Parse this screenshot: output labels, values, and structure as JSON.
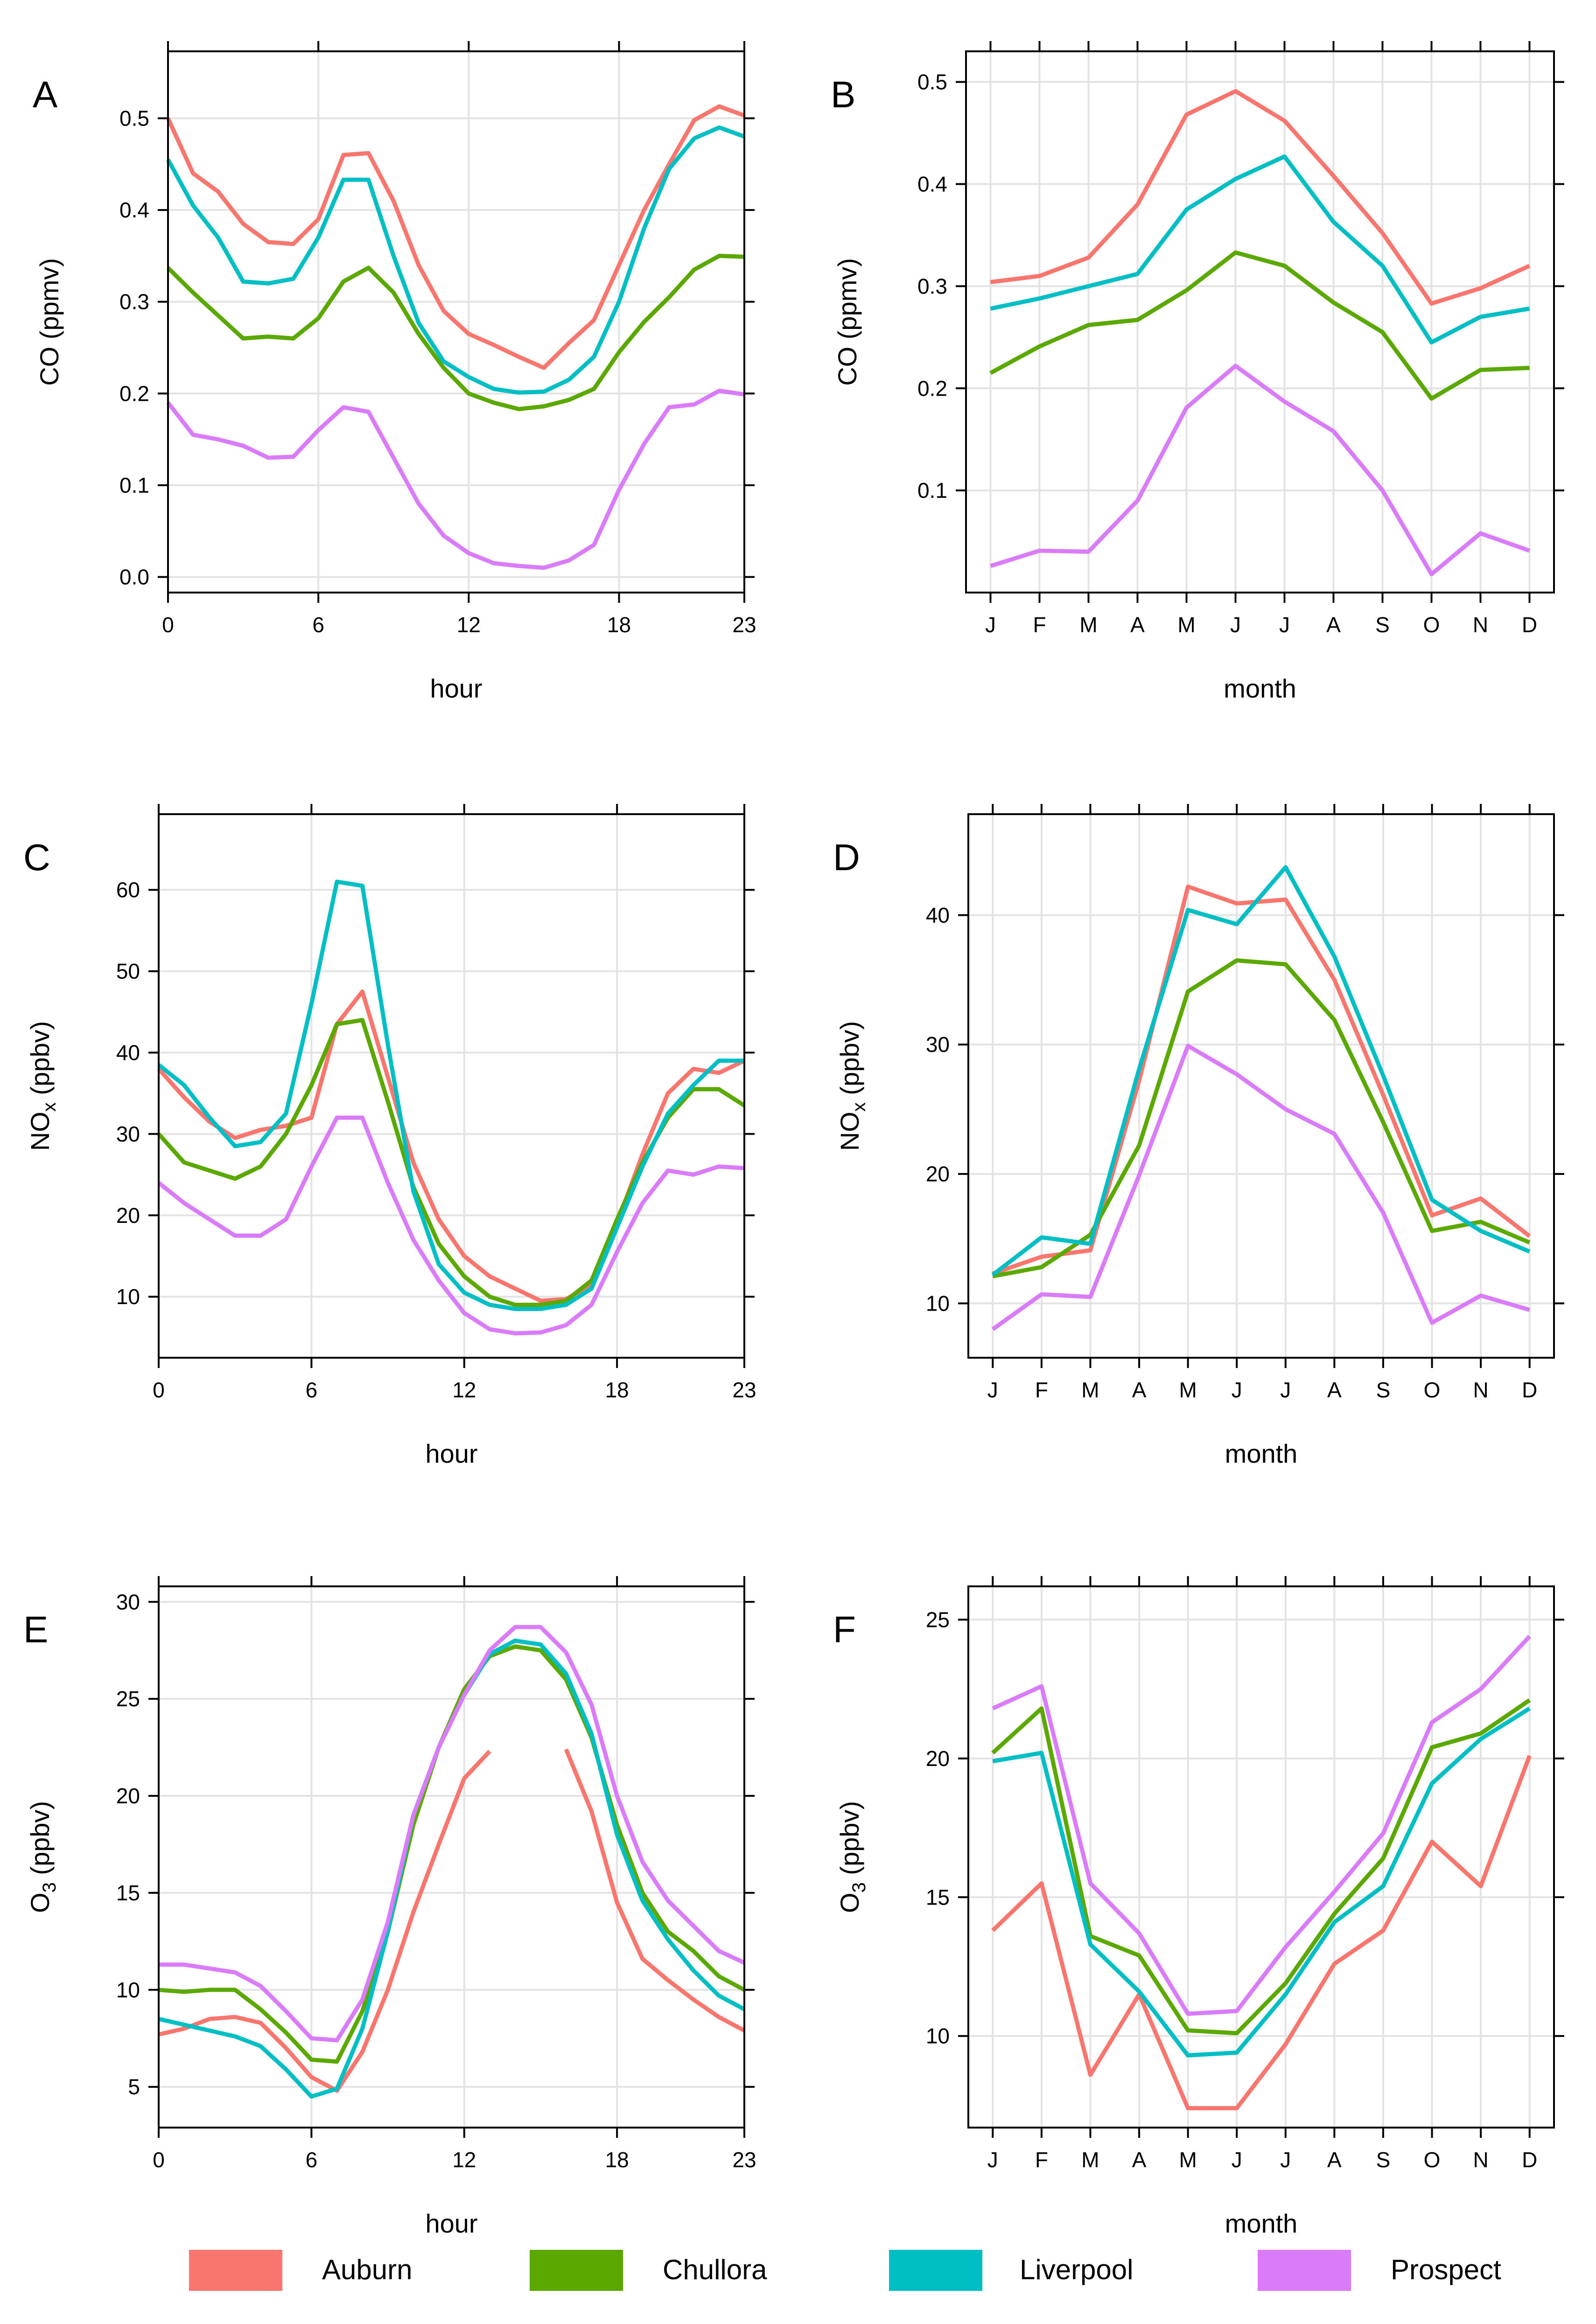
{
  "chart_data": [
    {
      "id": "A",
      "panel_label": "A",
      "type": "line",
      "xlabel": "hour",
      "ylabel": "CO (ppmv)",
      "ylabel_sub": "",
      "xlim": [
        0,
        23
      ],
      "ylim": [
        -0.017,
        0.573
      ],
      "xticks": [
        {
          "v": 0,
          "label": "0"
        },
        {
          "v": 6,
          "label": "6"
        },
        {
          "v": 12,
          "label": "12"
        },
        {
          "v": 18,
          "label": "18"
        },
        {
          "v": 23,
          "label": "23"
        }
      ],
      "yticks": [
        {
          "v": 0.0,
          "label": "0.0"
        },
        {
          "v": 0.1,
          "label": "0.1"
        },
        {
          "v": 0.2,
          "label": "0.2"
        },
        {
          "v": 0.3,
          "label": "0.3"
        },
        {
          "v": 0.4,
          "label": "0.4"
        },
        {
          "v": 0.5,
          "label": "0.5"
        }
      ],
      "x": [
        0,
        1,
        2,
        3,
        4,
        5,
        6,
        7,
        8,
        9,
        10,
        11,
        12,
        13,
        14,
        15,
        16,
        17,
        18,
        19,
        20,
        21,
        22,
        23
      ],
      "series": [
        {
          "name": "Auburn",
          "values": [
            0.5,
            0.44,
            0.42,
            0.385,
            0.365,
            0.363,
            0.39,
            0.46,
            0.462,
            0.41,
            0.34,
            0.29,
            0.265,
            0.253,
            0.24,
            0.228,
            0.255,
            0.28,
            0.34,
            0.4,
            0.45,
            0.498,
            0.513,
            0.503
          ]
        },
        {
          "name": "Chullora",
          "values": [
            0.337,
            0.31,
            0.285,
            0.26,
            0.262,
            0.26,
            0.282,
            0.322,
            0.337,
            0.31,
            0.265,
            0.228,
            0.2,
            0.19,
            0.183,
            0.186,
            0.193,
            0.205,
            0.245,
            0.278,
            0.305,
            0.335,
            0.35,
            0.349
          ]
        },
        {
          "name": "Liverpool",
          "values": [
            0.455,
            0.405,
            0.37,
            0.322,
            0.32,
            0.325,
            0.37,
            0.433,
            0.433,
            0.35,
            0.277,
            0.235,
            0.218,
            0.205,
            0.201,
            0.202,
            0.215,
            0.24,
            0.3,
            0.38,
            0.445,
            0.478,
            0.49,
            0.48
          ]
        },
        {
          "name": "Prospect",
          "values": [
            0.19,
            0.155,
            0.15,
            0.143,
            0.13,
            0.131,
            0.16,
            0.185,
            0.18,
            0.13,
            0.08,
            0.045,
            0.026,
            0.015,
            0.012,
            0.01,
            0.018,
            0.035,
            0.095,
            0.145,
            0.185,
            0.188,
            0.203,
            0.199
          ]
        }
      ]
    },
    {
      "id": "B",
      "panel_label": "B",
      "type": "line",
      "xlabel": "month",
      "ylabel": "CO (ppmv)",
      "ylabel_sub": "",
      "xlim": [
        0.5,
        12.5
      ],
      "ylim": [
        0.0,
        0.53
      ],
      "xticks": [
        {
          "v": 1,
          "label": "J"
        },
        {
          "v": 2,
          "label": "F"
        },
        {
          "v": 3,
          "label": "M"
        },
        {
          "v": 4,
          "label": "A"
        },
        {
          "v": 5,
          "label": "M"
        },
        {
          "v": 6,
          "label": "J"
        },
        {
          "v": 7,
          "label": "J"
        },
        {
          "v": 8,
          "label": "A"
        },
        {
          "v": 9,
          "label": "S"
        },
        {
          "v": 10,
          "label": "O"
        },
        {
          "v": 11,
          "label": "N"
        },
        {
          "v": 12,
          "label": "D"
        }
      ],
      "yticks": [
        {
          "v": 0.1,
          "label": "0.1"
        },
        {
          "v": 0.2,
          "label": "0.2"
        },
        {
          "v": 0.3,
          "label": "0.3"
        },
        {
          "v": 0.4,
          "label": "0.4"
        },
        {
          "v": 0.5,
          "label": "0.5"
        }
      ],
      "x": [
        1,
        2,
        3,
        4,
        5,
        6,
        7,
        8,
        9,
        10,
        11,
        12
      ],
      "series": [
        {
          "name": "Auburn",
          "values": [
            0.304,
            0.31,
            0.328,
            0.38,
            0.468,
            0.491,
            0.462,
            0.408,
            0.352,
            0.283,
            0.298,
            0.32
          ]
        },
        {
          "name": "Chullora",
          "values": [
            0.215,
            0.241,
            0.262,
            0.267,
            0.296,
            0.333,
            0.32,
            0.284,
            0.255,
            0.19,
            0.218,
            0.22
          ]
        },
        {
          "name": "Liverpool",
          "values": [
            0.278,
            0.288,
            0.3,
            0.312,
            0.375,
            0.405,
            0.427,
            0.363,
            0.32,
            0.245,
            0.27,
            0.278
          ]
        },
        {
          "name": "Prospect",
          "values": [
            0.026,
            0.041,
            0.04,
            0.09,
            0.181,
            0.222,
            0.187,
            0.158,
            0.1,
            0.018,
            0.058,
            0.041
          ]
        }
      ]
    },
    {
      "id": "C",
      "panel_label": "C",
      "type": "line",
      "xlabel": "hour",
      "ylabel": "NO",
      "ylabel_sub": "x",
      "ylabel_unit": " (ppbv)",
      "xlim": [
        0,
        23
      ],
      "ylim": [
        2.5,
        69.3
      ],
      "xticks": [
        {
          "v": 0,
          "label": "0"
        },
        {
          "v": 6,
          "label": "6"
        },
        {
          "v": 12,
          "label": "12"
        },
        {
          "v": 18,
          "label": "18"
        },
        {
          "v": 23,
          "label": "23"
        }
      ],
      "yticks": [
        {
          "v": 10,
          "label": "10"
        },
        {
          "v": 20,
          "label": "20"
        },
        {
          "v": 30,
          "label": "30"
        },
        {
          "v": 40,
          "label": "40"
        },
        {
          "v": 50,
          "label": "50"
        },
        {
          "v": 60,
          "label": "60"
        }
      ],
      "x": [
        0,
        1,
        2,
        3,
        4,
        5,
        6,
        7,
        8,
        9,
        10,
        11,
        12,
        13,
        14,
        15,
        16,
        17,
        18,
        19,
        20,
        21,
        22,
        23
      ],
      "series": [
        {
          "name": "Auburn",
          "values": [
            38,
            34.5,
            31.5,
            29.5,
            30.5,
            31,
            32,
            43.5,
            47.5,
            37,
            26.5,
            19.5,
            15,
            12.5,
            11,
            9.5,
            9.7,
            11.5,
            19,
            27.5,
            35,
            38,
            37.5,
            39
          ]
        },
        {
          "name": "Chullora",
          "values": [
            30,
            26.5,
            25.5,
            24.5,
            26,
            30,
            36,
            43.5,
            44,
            34,
            23.5,
            16.5,
            12.5,
            10,
            9,
            9,
            9.5,
            12,
            19.5,
            26.5,
            32,
            35.5,
            35.5,
            33.5
          ]
        },
        {
          "name": "Liverpool",
          "values": [
            38.5,
            36,
            32,
            28.5,
            29,
            32.5,
            46,
            61,
            60.5,
            41,
            23,
            14,
            10.5,
            9,
            8.5,
            8.5,
            9,
            11,
            18.5,
            26,
            32.5,
            36,
            39,
            39
          ]
        },
        {
          "name": "Prospect",
          "values": [
            24,
            21.5,
            19.5,
            17.5,
            17.5,
            19.5,
            26,
            32,
            32,
            24,
            17,
            12,
            8,
            6,
            5.5,
            5.6,
            6.5,
            9,
            15.5,
            21.5,
            25.5,
            25,
            26,
            25.8
          ]
        }
      ]
    },
    {
      "id": "D",
      "panel_label": "D",
      "type": "line",
      "xlabel": "month",
      "ylabel": "NO",
      "ylabel_sub": "x",
      "ylabel_unit": " (ppbv)",
      "xlim": [
        0.5,
        12.5
      ],
      "ylim": [
        5.8,
        47.8
      ],
      "xticks": [
        {
          "v": 1,
          "label": "J"
        },
        {
          "v": 2,
          "label": "F"
        },
        {
          "v": 3,
          "label": "M"
        },
        {
          "v": 4,
          "label": "A"
        },
        {
          "v": 5,
          "label": "M"
        },
        {
          "v": 6,
          "label": "J"
        },
        {
          "v": 7,
          "label": "J"
        },
        {
          "v": 8,
          "label": "A"
        },
        {
          "v": 9,
          "label": "S"
        },
        {
          "v": 10,
          "label": "O"
        },
        {
          "v": 11,
          "label": "N"
        },
        {
          "v": 12,
          "label": "D"
        }
      ],
      "yticks": [
        {
          "v": 10,
          "label": "10"
        },
        {
          "v": 20,
          "label": "20"
        },
        {
          "v": 30,
          "label": "30"
        },
        {
          "v": 40,
          "label": "40"
        }
      ],
      "x": [
        1,
        2,
        3,
        4,
        5,
        6,
        7,
        8,
        9,
        10,
        11,
        12
      ],
      "series": [
        {
          "name": "Auburn",
          "values": [
            12.3,
            13.6,
            14.1,
            27.2,
            42.2,
            40.9,
            41.2,
            35,
            26.1,
            16.8,
            18.1,
            15.2
          ]
        },
        {
          "name": "Chullora",
          "values": [
            12.1,
            12.8,
            15.3,
            22.2,
            34.1,
            36.5,
            36.2,
            31.9,
            24,
            15.6,
            16.3,
            14.7
          ]
        },
        {
          "name": "Liverpool",
          "values": [
            12.2,
            15.1,
            14.6,
            28.1,
            40.4,
            39.3,
            43.7,
            36.8,
            27.6,
            18,
            15.6,
            14
          ]
        },
        {
          "name": "Prospect",
          "values": [
            8,
            10.7,
            10.5,
            19.9,
            29.9,
            27.7,
            25,
            23.1,
            17,
            8.5,
            10.6,
            9.5
          ]
        }
      ]
    },
    {
      "id": "E",
      "panel_label": "E",
      "type": "line",
      "xlabel": "hour",
      "ylabel": "O",
      "ylabel_sub": "3",
      "ylabel_unit": " (ppbv)",
      "xlim": [
        0,
        23
      ],
      "ylim": [
        2.9,
        30.8
      ],
      "xticks": [
        {
          "v": 0,
          "label": "0"
        },
        {
          "v": 6,
          "label": "6"
        },
        {
          "v": 12,
          "label": "12"
        },
        {
          "v": 18,
          "label": "18"
        },
        {
          "v": 23,
          "label": "23"
        }
      ],
      "yticks": [
        {
          "v": 5,
          "label": "5"
        },
        {
          "v": 10,
          "label": "10"
        },
        {
          "v": 15,
          "label": "15"
        },
        {
          "v": 20,
          "label": "20"
        },
        {
          "v": 25,
          "label": "25"
        },
        {
          "v": 30,
          "label": "30"
        }
      ],
      "x": [
        0,
        1,
        2,
        3,
        4,
        5,
        6,
        7,
        8,
        9,
        10,
        11,
        12,
        13,
        14,
        15,
        16,
        17,
        18,
        19,
        20,
        21,
        22,
        23
      ],
      "series": [
        {
          "name": "Auburn",
          "values": [
            7.7,
            8.0,
            8.5,
            8.6,
            8.3,
            7.0,
            5.5,
            4.8,
            6.8,
            10.0,
            14.0,
            17.5,
            20.9,
            22.3,
            null,
            null,
            22.4,
            19.2,
            14.5,
            11.6,
            10.5,
            9.5,
            8.6,
            7.9
          ]
        },
        {
          "name": "Chullora",
          "values": [
            10.0,
            9.9,
            10.0,
            10.0,
            9.0,
            7.8,
            6.4,
            6.3,
            8.9,
            13.0,
            18.5,
            22.5,
            25.5,
            27.2,
            27.7,
            27.5,
            26.0,
            23.0,
            18.5,
            15.0,
            13.0,
            12.0,
            10.7,
            10.0
          ]
        },
        {
          "name": "Liverpool",
          "values": [
            8.5,
            8.2,
            7.9,
            7.6,
            7.1,
            5.9,
            4.5,
            4.9,
            8.0,
            13.0,
            19.0,
            22.5,
            25.2,
            27.3,
            28.0,
            27.8,
            26.3,
            23.2,
            18.0,
            14.6,
            12.6,
            11.0,
            9.7,
            9.0
          ]
        },
        {
          "name": "Prospect",
          "values": [
            11.3,
            11.3,
            11.1,
            10.9,
            10.2,
            8.9,
            7.5,
            7.4,
            9.5,
            13.5,
            19.0,
            22.5,
            25.2,
            27.5,
            28.7,
            28.7,
            27.4,
            24.7,
            20.0,
            16.6,
            14.6,
            13.3,
            12.0,
            11.4
          ]
        }
      ]
    },
    {
      "id": "F",
      "panel_label": "F",
      "type": "line",
      "xlabel": "month",
      "ylabel": "O",
      "ylabel_sub": "3",
      "ylabel_unit": " (ppbv)",
      "xlim": [
        0.5,
        12.5
      ],
      "ylim": [
        6.7,
        26.2
      ],
      "xticks": [
        {
          "v": 1,
          "label": "J"
        },
        {
          "v": 2,
          "label": "F"
        },
        {
          "v": 3,
          "label": "M"
        },
        {
          "v": 4,
          "label": "A"
        },
        {
          "v": 5,
          "label": "M"
        },
        {
          "v": 6,
          "label": "J"
        },
        {
          "v": 7,
          "label": "J"
        },
        {
          "v": 8,
          "label": "A"
        },
        {
          "v": 9,
          "label": "S"
        },
        {
          "v": 10,
          "label": "O"
        },
        {
          "v": 11,
          "label": "N"
        },
        {
          "v": 12,
          "label": "D"
        }
      ],
      "yticks": [
        {
          "v": 10,
          "label": "10"
        },
        {
          "v": 15,
          "label": "15"
        },
        {
          "v": 20,
          "label": "20"
        },
        {
          "v": 25,
          "label": "25"
        }
      ],
      "x": [
        1,
        2,
        3,
        4,
        5,
        6,
        7,
        8,
        9,
        10,
        11,
        12
      ],
      "series": [
        {
          "name": "Auburn",
          "values": [
            13.8,
            15.5,
            8.6,
            11.5,
            7.4,
            7.4,
            9.7,
            12.6,
            13.8,
            17.0,
            15.4,
            20.1
          ]
        },
        {
          "name": "Chullora",
          "values": [
            20.2,
            21.8,
            13.6,
            12.9,
            10.2,
            10.1,
            11.9,
            14.4,
            16.4,
            20.4,
            20.9,
            22.1
          ]
        },
        {
          "name": "Liverpool",
          "values": [
            19.9,
            20.2,
            13.3,
            11.6,
            9.3,
            9.4,
            11.5,
            14.1,
            15.4,
            19.1,
            20.7,
            21.8
          ]
        },
        {
          "name": "Prospect",
          "values": [
            21.8,
            22.6,
            15.5,
            13.7,
            10.8,
            10.9,
            13.2,
            15.2,
            17.3,
            21.3,
            22.5,
            24.4
          ]
        }
      ]
    }
  ],
  "legend": [
    {
      "name": "Auburn",
      "color": "#f8766d"
    },
    {
      "name": "Chullora",
      "color": "#5aa800"
    },
    {
      "name": "Liverpool",
      "color": "#00bfc4"
    },
    {
      "name": "Prospect",
      "color": "#da7cf9"
    }
  ]
}
